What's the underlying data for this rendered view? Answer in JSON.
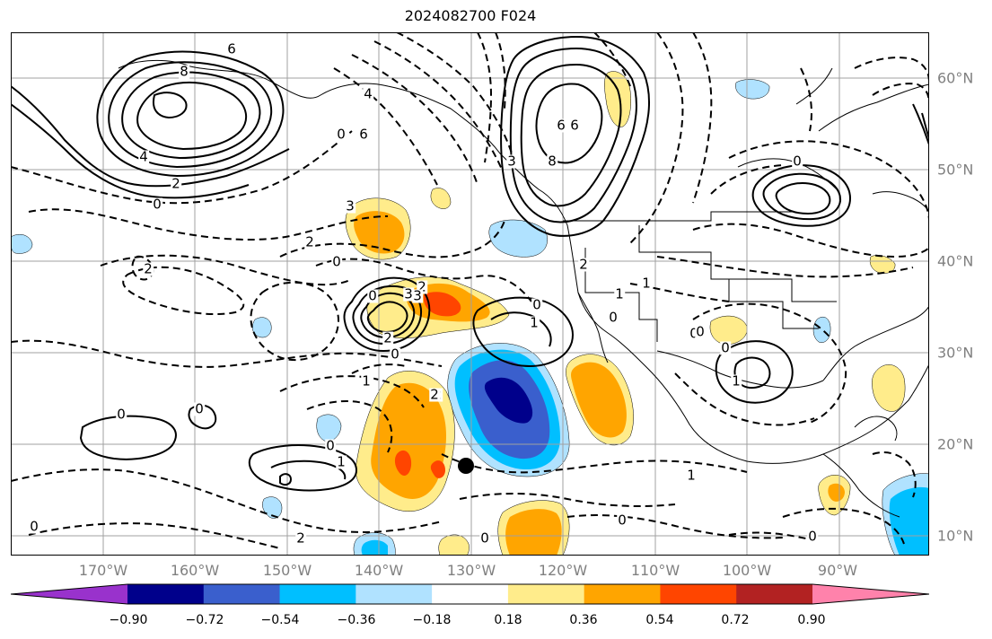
{
  "title": "2024082700 F024",
  "map": {
    "lon_labels": [
      "170°W",
      "160°W",
      "150°W",
      "140°W",
      "130°W",
      "120°W",
      "110°W",
      "100°W",
      "90°W"
    ],
    "lat_labels": [
      "60°N",
      "50°N",
      "40°N",
      "30°N",
      "20°N",
      "10°N"
    ]
  },
  "colorbar": {
    "tick_labels": [
      "−0.90",
      "−0.72",
      "−0.54",
      "−0.36",
      "−0.18",
      "0.18",
      "0.36",
      "0.54",
      "0.72",
      "0.90"
    ],
    "colors": [
      "#9932cc",
      "#00008b",
      "#3a5fcd",
      "#00bfff",
      "#b0e2ff",
      "#ffffff",
      "#ffec8b",
      "#ffa500",
      "#ff4500",
      "#b22222",
      "#ff82ab"
    ]
  },
  "contour_labels": [
    {
      "text": "8"
    },
    {
      "text": "6"
    },
    {
      "text": "4"
    },
    {
      "text": "2"
    },
    {
      "text": "0"
    },
    {
      "text": "2"
    },
    {
      "text": "4"
    },
    {
      "text": "6"
    },
    {
      "text": "0"
    },
    {
      "text": "6"
    },
    {
      "text": "8"
    },
    {
      "text": "3"
    },
    {
      "text": "2"
    },
    {
      "text": "3"
    },
    {
      "text": "0"
    },
    {
      "text": "2"
    },
    {
      "text": "3"
    },
    {
      "text": "0"
    },
    {
      "text": "3"
    },
    {
      "text": "2"
    },
    {
      "text": "1"
    },
    {
      "text": "0"
    },
    {
      "text": "1"
    },
    {
      "text": "3"
    },
    {
      "text": "2"
    },
    {
      "text": "0"
    },
    {
      "text": "1"
    },
    {
      "text": "1"
    },
    {
      "text": "2"
    },
    {
      "text": "1"
    },
    {
      "text": "0"
    },
    {
      "text": "0"
    },
    {
      "text": "1"
    },
    {
      "text": "0"
    },
    {
      "text": "0"
    },
    {
      "text": "1"
    },
    {
      "text": "0"
    },
    {
      "text": "0"
    },
    {
      "text": "0"
    },
    {
      "text": "0"
    },
    {
      "text": "0"
    },
    {
      "text": "0"
    },
    {
      "text": "1"
    },
    {
      "text": "0"
    },
    {
      "text": "2"
    },
    {
      "text": "6"
    },
    {
      "text": "0"
    },
    {
      "text": "2"
    }
  ]
}
